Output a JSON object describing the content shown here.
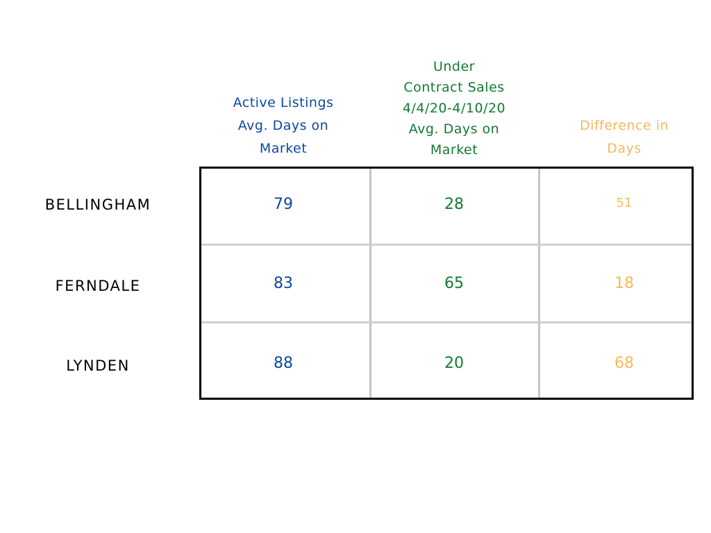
{
  "table": {
    "columns": [
      {
        "lines": [
          "Active Listings",
          "Avg. Days on",
          "Market"
        ],
        "color": "#0d47a1"
      },
      {
        "lines": [
          "Under",
          "Contract Sales",
          "4/4/20-4/10/20",
          "Avg. Days on",
          "Market"
        ],
        "color": "#127a32"
      },
      {
        "lines": [
          "Difference in",
          "Days"
        ],
        "color": "#f7b85c"
      }
    ],
    "rows": [
      {
        "label": "BELLINGHAM",
        "values": [
          79,
          28,
          51
        ]
      },
      {
        "label": "FERNDALE",
        "values": [
          83,
          65,
          18
        ]
      },
      {
        "label": "LYNDEN",
        "values": [
          88,
          20,
          68
        ]
      }
    ]
  }
}
